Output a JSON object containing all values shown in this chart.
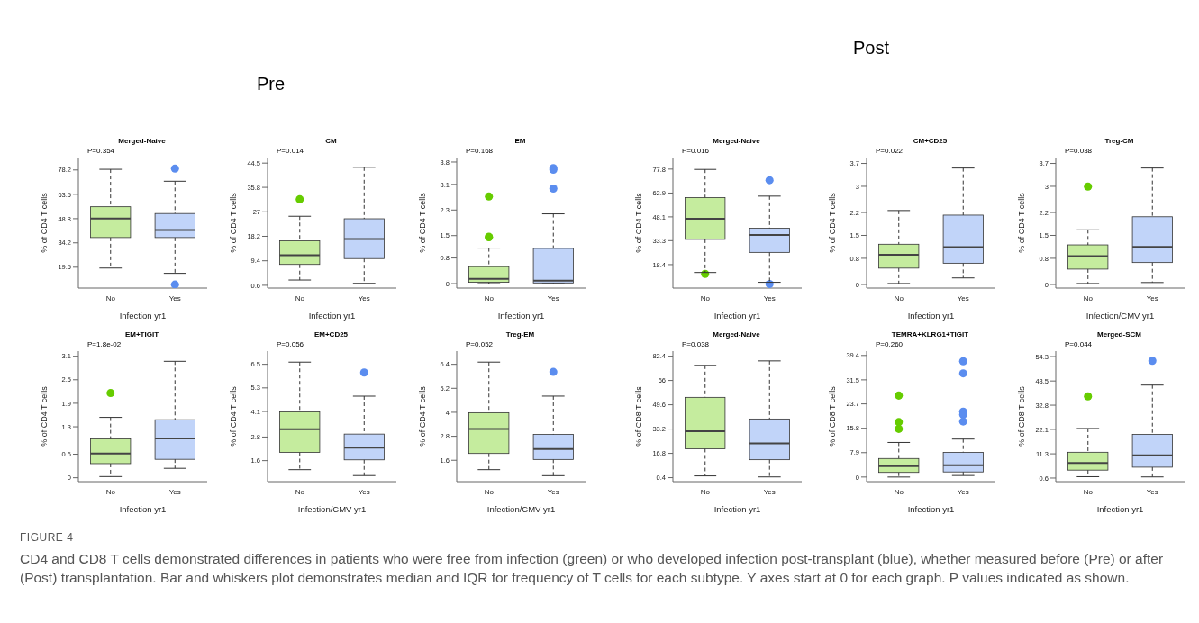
{
  "chart_data": [
    {
      "type": "other",
      "annotations": [
        "Pre",
        "Post"
      ]
    },
    {
      "type": "box",
      "title": "Merged-Naive",
      "categories": [
        "No",
        "Yes"
      ],
      "colors": [
        "#66cc00",
        "#5b8def"
      ],
      "xlabel": "Infection yr1",
      "ylabel": "% of CD4 T cells",
      "ylim": [
        6.9,
        85.7
      ],
      "yticks": [
        19.5,
        34.2,
        48.8,
        63.5,
        78.2
      ],
      "annotations": [
        "P=0.354"
      ],
      "boxes": [
        {
          "low": 19.0,
          "q1": 37.4,
          "median": 48.9,
          "q3": 56.0,
          "high": 78.6
        },
        {
          "low": 15.8,
          "q1": 37.4,
          "median": 41.9,
          "q3": 51.9,
          "high": 71.4,
          "outliers": [
            79.0,
            9.0
          ]
        }
      ]
    },
    {
      "type": "box",
      "title": "CM",
      "categories": [
        "No",
        "Yes"
      ],
      "colors": [
        "#66cc00",
        "#5b8def"
      ],
      "xlabel": "Infection yr1",
      "ylabel": "% of CD4 T cells",
      "ylim": [
        -0.4,
        46.5
      ],
      "yticks": [
        0.6,
        9.4,
        18.2,
        27,
        35.8,
        44.5
      ],
      "annotations": [
        "P=0.014"
      ],
      "boxes": [
        {
          "low": 2.5,
          "q1": 8.1,
          "median": 11.4,
          "q3": 16.6,
          "high": 25.4,
          "outliers": [
            31.5
          ]
        },
        {
          "low": 1.3,
          "q1": 10.2,
          "median": 17.2,
          "q3": 24.5,
          "high": 43.0
        }
      ]
    },
    {
      "type": "box",
      "title": "EM",
      "categories": [
        "No",
        "Yes"
      ],
      "colors": [
        "#66cc00",
        "#5b8def"
      ],
      "xlabel": "Infection yr1",
      "ylabel": "% of CD4 T cells",
      "ylim": [
        -0.14,
        3.94
      ],
      "yticks": [
        0,
        0.8,
        1.5,
        2.3,
        3.1,
        3.8
      ],
      "annotations": [
        "P=0.168"
      ],
      "boxes": [
        {
          "low": 0,
          "q1": 0.04,
          "median": 0.15,
          "q3": 0.53,
          "high": 1.11,
          "outliers": [
            2.72,
            1.46,
            1.45
          ]
        },
        {
          "low": 0,
          "q1": 0.02,
          "median": 0.09,
          "q3": 1.1,
          "high": 2.18,
          "outliers": [
            3.61,
            3.56,
            2.97
          ]
        }
      ]
    },
    {
      "type": "box",
      "title": "Merged-Naive",
      "categories": [
        "No",
        "Yes"
      ],
      "colors": [
        "#66cc00",
        "#5b8def"
      ],
      "xlabel": "Infection yr1",
      "ylabel": "% of CD4 T cells",
      "ylim": [
        3.8,
        85
      ],
      "yticks": [
        18.4,
        33.3,
        48.1,
        62.9,
        77.8
      ],
      "annotations": [
        "P=0.016"
      ],
      "boxes": [
        {
          "low": 13.5,
          "q1": 34.1,
          "median": 46.9,
          "q3": 60.1,
          "high": 77.6,
          "outliers": [
            12.6
          ]
        },
        {
          "low": 7.4,
          "q1": 26.0,
          "median": 36.8,
          "q3": 41.0,
          "high": 61.0,
          "outliers": [
            70.9,
            6.3
          ]
        }
      ]
    },
    {
      "type": "box",
      "title": "CM+CD25",
      "categories": [
        "No",
        "Yes"
      ],
      "colors": [
        "#66cc00",
        "#5b8def"
      ],
      "xlabel": "Infection yr1",
      "ylabel": "% of CD4 T cells",
      "ylim": [
        -0.11,
        3.88
      ],
      "yticks": [
        0,
        0.8,
        1.5,
        2.2,
        3,
        3.7
      ],
      "annotations": [
        "P=0.022"
      ],
      "boxes": [
        {
          "low": 0.03,
          "q1": 0.5,
          "median": 0.91,
          "q3": 1.23,
          "high": 2.26
        },
        {
          "low": 0.2,
          "q1": 0.65,
          "median": 1.14,
          "q3": 2.12,
          "high": 3.56
        }
      ]
    },
    {
      "type": "box",
      "title": "Treg-CM",
      "categories": [
        "No",
        "Yes"
      ],
      "colors": [
        "#66cc00",
        "#5b8def"
      ],
      "xlabel": "Infection/CMV yr1",
      "ylabel": "% of CD4 T cells",
      "ylim": [
        -0.11,
        3.88
      ],
      "yticks": [
        0,
        0.8,
        1.5,
        2.2,
        3,
        3.7
      ],
      "annotations": [
        "P=0.038"
      ],
      "boxes": [
        {
          "low": 0.03,
          "q1": 0.47,
          "median": 0.87,
          "q3": 1.21,
          "high": 1.67,
          "outliers": [
            2.99
          ]
        },
        {
          "low": 0.06,
          "q1": 0.67,
          "median": 1.15,
          "q3": 2.07,
          "high": 3.56
        }
      ]
    },
    {
      "type": "box",
      "title": "EM+TIGIT",
      "categories": [
        "No",
        "Yes"
      ],
      "colors": [
        "#66cc00",
        "#5b8def"
      ],
      "xlabel": "Infection yr1",
      "ylabel": "% of CD4 T cells",
      "ylim": [
        -0.1,
        3.23
      ],
      "yticks": [
        0,
        0.6,
        1.3,
        1.9,
        2.5,
        3.1
      ],
      "annotations": [
        "P=1.8e-02"
      ],
      "boxes": [
        {
          "low": 0.03,
          "q1": 0.36,
          "median": 0.62,
          "q3": 0.99,
          "high": 1.54,
          "outliers": [
            2.16
          ]
        },
        {
          "low": 0.24,
          "q1": 0.47,
          "median": 1.0,
          "q3": 1.48,
          "high": 2.97
        }
      ]
    },
    {
      "type": "box",
      "title": "EM+CD25",
      "categories": [
        "No",
        "Yes"
      ],
      "colors": [
        "#66cc00",
        "#5b8def"
      ],
      "xlabel": "Infection/CMV yr1",
      "ylabel": "% of CD4 T cells",
      "ylim": [
        0.53,
        7.17
      ],
      "yticks": [
        1.6,
        2.8,
        4.1,
        5.3,
        6.5
      ],
      "annotations": [
        "P=0.056"
      ],
      "boxes": [
        {
          "low": 1.14,
          "q1": 2.02,
          "median": 3.2,
          "q3": 4.08,
          "high": 6.61
        },
        {
          "low": 0.84,
          "q1": 1.64,
          "median": 2.26,
          "q3": 2.95,
          "high": 4.88,
          "outliers": [
            6.08
          ]
        }
      ]
    },
    {
      "type": "box",
      "title": "Treg-EM",
      "categories": [
        "No",
        "Yes"
      ],
      "colors": [
        "#66cc00",
        "#5b8def"
      ],
      "xlabel": "Infection/CMV yr1",
      "ylabel": "% of CD4 T cells",
      "ylim": [
        0.53,
        7.06
      ],
      "yticks": [
        1.6,
        2.8,
        4,
        5.2,
        6.4
      ],
      "annotations": [
        "P=0.052"
      ],
      "boxes": [
        {
          "low": 1.13,
          "q1": 1.94,
          "median": 3.16,
          "q3": 3.98,
          "high": 6.51
        },
        {
          "low": 0.83,
          "q1": 1.64,
          "median": 2.16,
          "q3": 2.89,
          "high": 4.81,
          "outliers": [
            6.02
          ]
        }
      ]
    },
    {
      "type": "box",
      "title": "Merged-Naive",
      "categories": [
        "No",
        "Yes"
      ],
      "colors": [
        "#66cc00",
        "#5b8def"
      ],
      "xlabel": "Infection yr1",
      "ylabel": "% of CD8 T cells",
      "ylim": [
        -2.3,
        85.8
      ],
      "yticks": [
        0.4,
        16.8,
        33.2,
        49.6,
        66,
        82.4
      ],
      "annotations": [
        "P=0.038"
      ],
      "boxes": [
        {
          "low": 1.6,
          "q1": 19.9,
          "median": 31.7,
          "q3": 54.6,
          "high": 76.2
        },
        {
          "low": 0.9,
          "q1": 12.5,
          "median": 23.5,
          "q3": 40.0,
          "high": 79.2
        }
      ]
    },
    {
      "type": "box",
      "title": "TEMRA+KLRG1+TIGIT",
      "categories": [
        "No",
        "Yes"
      ],
      "colors": [
        "#66cc00",
        "#5b8def"
      ],
      "xlabel": "Infection yr1",
      "ylabel": "% of CD8 T cells",
      "ylim": [
        -1.5,
        40.8
      ],
      "yticks": [
        0,
        7.9,
        15.8,
        23.7,
        31.5,
        39.4
      ],
      "annotations": [
        "P=0.260"
      ],
      "boxes": [
        {
          "low": 0,
          "q1": 1.5,
          "median": 3.5,
          "q3": 6.0,
          "high": 11.2,
          "outliers": [
            26.4,
            17.8,
            15.6
          ]
        },
        {
          "low": 0.5,
          "q1": 1.65,
          "median": 3.8,
          "q3": 8.0,
          "high": 12.3,
          "outliers": [
            37.5,
            33.6,
            21.2,
            20.2,
            18.0
          ]
        }
      ]
    },
    {
      "type": "box",
      "title": "Merged-SCM",
      "categories": [
        "No",
        "Yes"
      ],
      "colors": [
        "#66cc00",
        "#5b8def"
      ],
      "xlabel": "Infection yr1",
      "ylabel": "% of CD8 T cells",
      "ylim": [
        -1.0,
        56.7
      ],
      "yticks": [
        0.6,
        11.3,
        22.1,
        32.8,
        43.5,
        54.3
      ],
      "annotations": [
        "P=0.044"
      ],
      "boxes": [
        {
          "low": 1.2,
          "q1": 4.1,
          "median": 7.3,
          "q3": 12.0,
          "high": 22.5,
          "outliers": [
            36.7
          ]
        },
        {
          "low": 1.1,
          "q1": 5.4,
          "median": 10.6,
          "q3": 19.9,
          "high": 41.7,
          "outliers": [
            52.4
          ]
        }
      ]
    },
    {
      "type": "other",
      "title": "FIGURE 4",
      "annotations": [
        "CD4 and CD8 T cells demonstrated differences in patients who were free from infection (green) or who developed infection post-transplant (blue), whether measured before (Pre) or after (Post) transplantation. Bar and whiskers plot demonstrates median and IQR for frequency of T cells for each subtype. Y axes start at 0 for each graph. P values indicated as shown."
      ]
    }
  ]
}
